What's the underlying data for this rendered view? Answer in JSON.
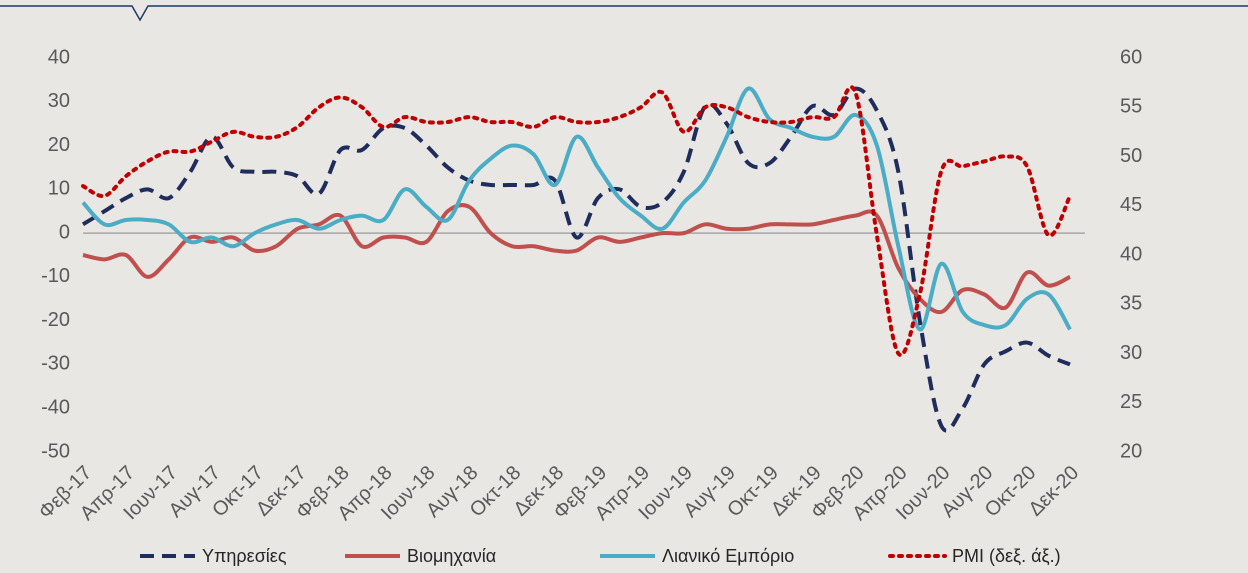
{
  "chart_data": {
    "type": "line",
    "categories": [
      "Φεβ-17",
      null,
      "Απρ-17",
      null,
      "Ιουν-17",
      null,
      "Αυγ-17",
      null,
      "Οκτ-17",
      null,
      "Δεκ-17",
      null,
      "Φεβ-18",
      null,
      "Απρ-18",
      null,
      "Ιουν-18",
      null,
      "Αυγ-18",
      null,
      "Οκτ-18",
      null,
      "Δεκ-18",
      null,
      "Φεβ-19",
      null,
      "Απρ-19",
      null,
      "Ιουν-19",
      null,
      "Αυγ-19",
      null,
      "Οκτ-19",
      null,
      "Δεκ-19",
      null,
      "Φεβ-20",
      null,
      "Απρ-20",
      null,
      "Ιουν-20",
      null,
      "Αυγ-20",
      null,
      "Οκτ-20",
      null,
      "Δεκ-20"
    ],
    "series": [
      {
        "name": "Υπηρεσίες",
        "color": "#1f2d5c",
        "dash": "dashed",
        "values": [
          2,
          5,
          8,
          10,
          8,
          14,
          22,
          15,
          14,
          14,
          13,
          9,
          19,
          19,
          24,
          24,
          20,
          15,
          12,
          11,
          11,
          11,
          12,
          -1,
          8,
          10,
          6,
          7,
          14,
          29,
          25,
          16,
          16,
          22,
          29,
          27,
          33,
          28,
          14,
          -20,
          -44,
          -40,
          -30,
          -27,
          -25,
          -28,
          -30
        ]
      },
      {
        "name": "Βιομηχανία",
        "color": "#c0504d",
        "dash": "solid",
        "values": [
          -5,
          -6,
          -5,
          -10,
          -6,
          -1,
          -2,
          -1,
          -4,
          -3,
          1,
          2,
          4,
          -3,
          -1,
          -1,
          -2,
          5,
          6,
          0,
          -3,
          -3,
          -4,
          -4,
          -1,
          -2,
          -1,
          0,
          0,
          2,
          1,
          1,
          2,
          2,
          2,
          3,
          4,
          4,
          -8,
          -15,
          -18,
          -13,
          -14,
          -17,
          -9,
          -12,
          -10
        ]
      },
      {
        "name": "Λιανικό Εμπόριο",
        "color": "#4bacc6",
        "dash": "solid",
        "values": [
          7,
          2,
          3,
          3,
          2,
          -2,
          -1,
          -3,
          0,
          2,
          3,
          1,
          3,
          4,
          3,
          10,
          6,
          3,
          12,
          17,
          20,
          18,
          11,
          22,
          15,
          8,
          4,
          1,
          7,
          12,
          22,
          33,
          26,
          24,
          22,
          22,
          27,
          20,
          -3,
          -22,
          -7,
          -18,
          -21,
          -21,
          -15,
          -14,
          -22
        ]
      },
      {
        "name": "PMI  (δεξ. άξ.)",
        "color": "#c00000",
        "dash": "dotted",
        "axis": "y2",
        "values": [
          47,
          46,
          48,
          49.5,
          50.5,
          50.5,
          51.5,
          52.5,
          52,
          52,
          53,
          55,
          56,
          55,
          53,
          54,
          53.5,
          53.5,
          54,
          53.5,
          53.5,
          53,
          54,
          53.5,
          53.5,
          54,
          55,
          56.5,
          52.5,
          55,
          55,
          54,
          53.5,
          53.5,
          54,
          54,
          56.5,
          42,
          30,
          36,
          48.5,
          49,
          49.5,
          50,
          49,
          42,
          46
        ]
      }
    ],
    "ylim": [
      -50,
      40
    ],
    "yticks": [
      -50,
      -40,
      -30,
      -20,
      -10,
      0,
      10,
      20,
      30,
      40
    ],
    "y2lim": [
      20,
      60
    ],
    "y2ticks": [
      20,
      25,
      30,
      35,
      40,
      45,
      50,
      55,
      60
    ],
    "zero_line": true,
    "legend": "bottom"
  }
}
